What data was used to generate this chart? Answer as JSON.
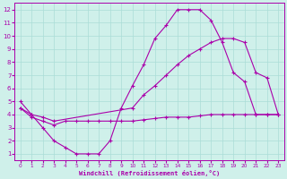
{
  "xlabel": "Windchill (Refroidissement éolien,°C)",
  "bg_color": "#cff0ea",
  "grid_color": "#aaddd7",
  "line_color": "#aa00aa",
  "xlim": [
    -0.5,
    23.5
  ],
  "ylim": [
    0.5,
    12.5
  ],
  "xticks": [
    0,
    1,
    2,
    3,
    4,
    5,
    6,
    7,
    8,
    9,
    10,
    11,
    12,
    13,
    14,
    15,
    16,
    17,
    18,
    19,
    20,
    21,
    22,
    23
  ],
  "yticks": [
    1,
    2,
    3,
    4,
    5,
    6,
    7,
    8,
    9,
    10,
    11,
    12
  ],
  "line1_x": [
    0,
    1,
    2,
    3,
    4,
    5,
    6,
    7,
    8,
    9,
    10,
    11,
    12,
    13,
    14,
    15,
    16,
    17,
    18,
    19,
    20,
    21,
    22,
    23
  ],
  "line1_y": [
    5.0,
    4.0,
    3.0,
    2.0,
    1.5,
    1.0,
    1.0,
    1.0,
    2.0,
    4.5,
    6.2,
    7.8,
    9.8,
    10.8,
    12.0,
    12.0,
    12.0,
    11.2,
    9.5,
    7.2,
    6.5,
    4.0,
    4.0,
    4.0
  ],
  "line2_x": [
    0,
    1,
    2,
    3,
    10,
    11,
    12,
    13,
    14,
    15,
    16,
    17,
    18,
    19,
    20,
    21,
    22,
    23
  ],
  "line2_y": [
    4.5,
    4.0,
    3.8,
    3.5,
    4.5,
    5.5,
    6.2,
    7.0,
    7.8,
    8.5,
    9.0,
    9.5,
    9.8,
    9.8,
    9.5,
    7.2,
    6.8,
    4.0
  ],
  "line3_x": [
    0,
    1,
    2,
    3,
    4,
    5,
    6,
    7,
    8,
    9,
    10,
    11,
    12,
    13,
    14,
    15,
    16,
    17,
    18,
    19,
    20,
    21,
    22,
    23
  ],
  "line3_y": [
    4.5,
    3.8,
    3.5,
    3.2,
    3.5,
    3.5,
    3.5,
    3.5,
    3.5,
    3.5,
    3.5,
    3.6,
    3.7,
    3.8,
    3.8,
    3.8,
    3.9,
    4.0,
    4.0,
    4.0,
    4.0,
    4.0,
    4.0,
    4.0
  ]
}
